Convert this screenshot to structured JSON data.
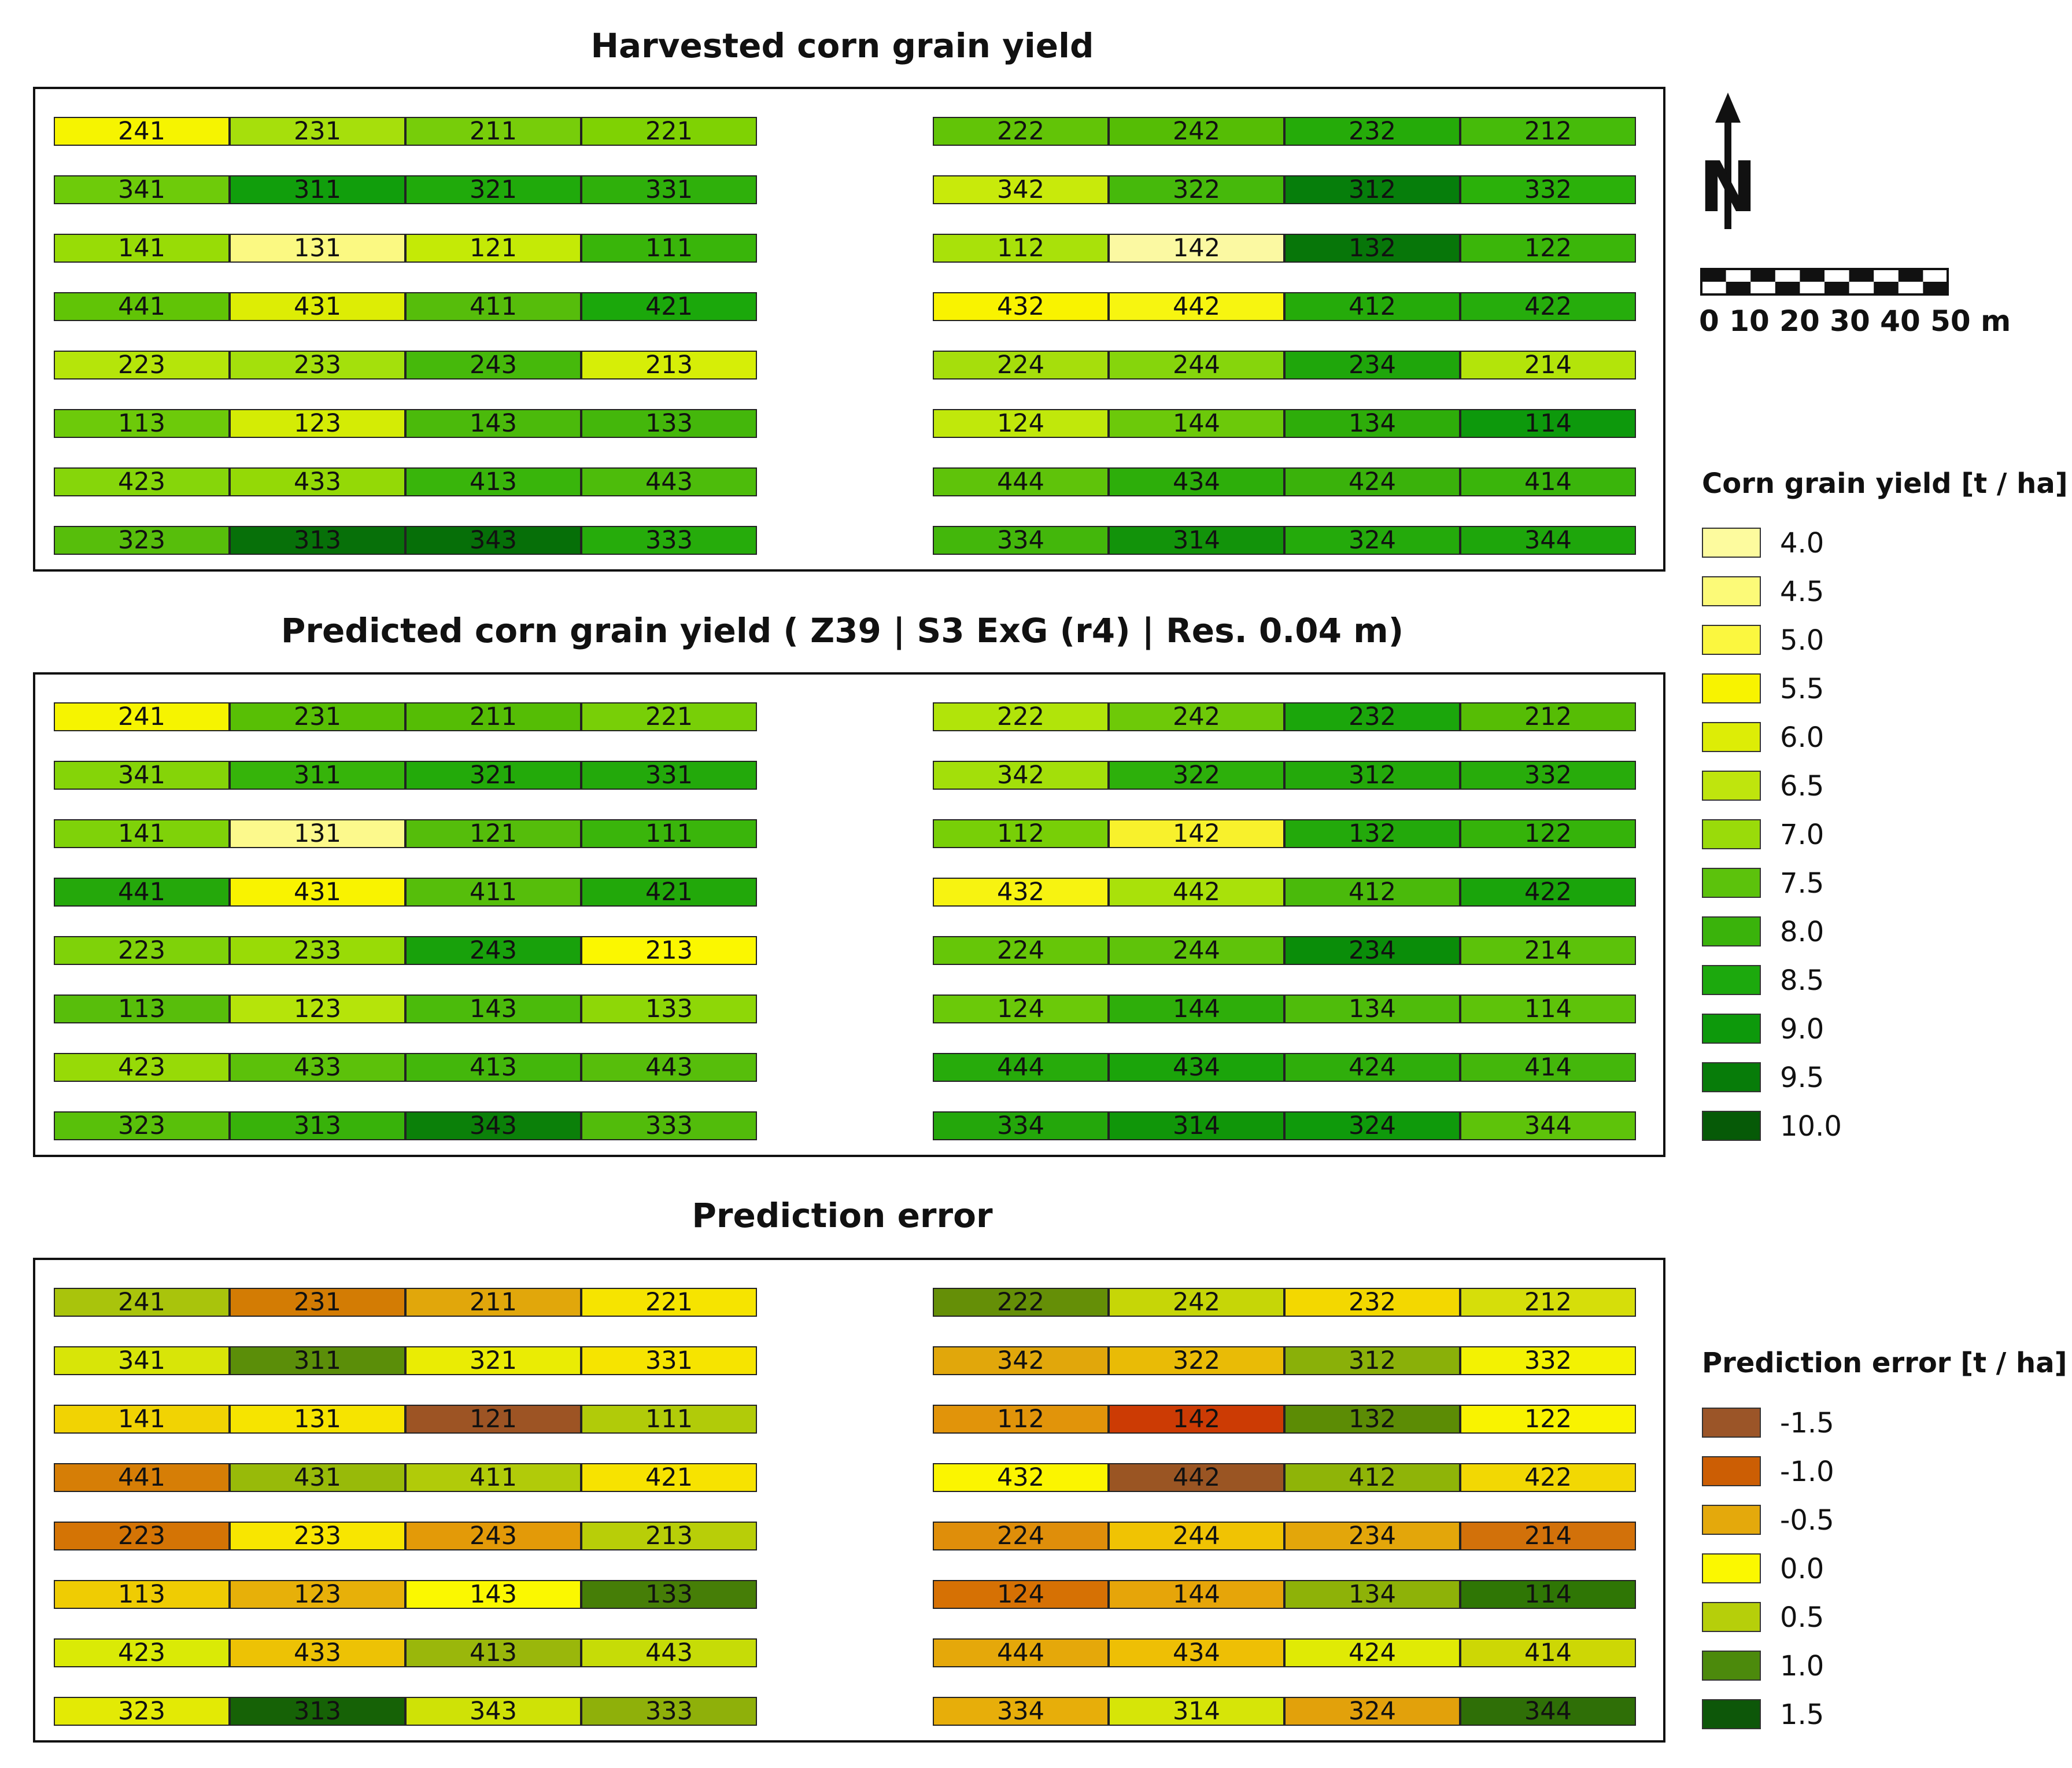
{
  "titles": {
    "harvested": "Harvested corn grain yield",
    "predicted": "Predicted corn grain yield ( Z39 | S3 ExG (r4) | Res. 0.04 m)",
    "error": "Prediction error"
  },
  "maps": {
    "harvested": {
      "rows": [
        [
          {
            "id": "241",
            "c": "#f6f400"
          },
          {
            "id": "231",
            "c": "#a6df0c"
          },
          {
            "id": "211",
            "c": "#77cd0a"
          },
          {
            "id": "221",
            "c": "#7fd203"
          },
          {
            "id": "222",
            "c": "#62c407"
          },
          {
            "id": "242",
            "c": "#55bd05"
          },
          {
            "id": "232",
            "c": "#25ab09"
          },
          {
            "id": "212",
            "c": "#46bb0a"
          }
        ],
        [
          {
            "id": "341",
            "c": "#6ecb0a"
          },
          {
            "id": "311",
            "c": "#119e0c"
          },
          {
            "id": "321",
            "c": "#20aa0b"
          },
          {
            "id": "331",
            "c": "#2fb00b"
          },
          {
            "id": "342",
            "c": "#c8ea0b"
          },
          {
            "id": "322",
            "c": "#46b90b"
          },
          {
            "id": "312",
            "c": "#067e0b"
          },
          {
            "id": "332",
            "c": "#2bb10a"
          }
        ],
        [
          {
            "id": "141",
            "c": "#98dc06"
          },
          {
            "id": "131",
            "c": "#fbf982"
          },
          {
            "id": "121",
            "c": "#c4ea06"
          },
          {
            "id": "111",
            "c": "#39b50a"
          },
          {
            "id": "112",
            "c": "#a9e10a"
          },
          {
            "id": "142",
            "c": "#fbf9a2"
          },
          {
            "id": "132",
            "c": "#077609"
          },
          {
            "id": "122",
            "c": "#3bb60a"
          }
        ],
        [
          {
            "id": "441",
            "c": "#61c406"
          },
          {
            "id": "431",
            "c": "#dded05"
          },
          {
            "id": "411",
            "c": "#56bd0b"
          },
          {
            "id": "421",
            "c": "#1ba80b"
          },
          {
            "id": "432",
            "c": "#f9f300"
          },
          {
            "id": "442",
            "c": "#f7f510"
          },
          {
            "id": "412",
            "c": "#25ab0a"
          },
          {
            "id": "422",
            "c": "#26ad0c"
          }
        ],
        [
          {
            "id": "223",
            "c": "#b5e50a"
          },
          {
            "id": "233",
            "c": "#a4e00c"
          },
          {
            "id": "243",
            "c": "#46b90b"
          },
          {
            "id": "213",
            "c": "#d6ee07"
          },
          {
            "id": "224",
            "c": "#a6de0c"
          },
          {
            "id": "244",
            "c": "#86d50c"
          },
          {
            "id": "234",
            "c": "#1fa60b"
          },
          {
            "id": "214",
            "c": "#b3e40a"
          }
        ],
        [
          {
            "id": "113",
            "c": "#6dca0a"
          },
          {
            "id": "123",
            "c": "#d4ec05"
          },
          {
            "id": "143",
            "c": "#4bba0b"
          },
          {
            "id": "133",
            "c": "#44b70b"
          },
          {
            "id": "124",
            "c": "#c0e80b"
          },
          {
            "id": "144",
            "c": "#6cc90a"
          },
          {
            "id": "134",
            "c": "#2ead0a"
          },
          {
            "id": "114",
            "c": "#0d990c"
          }
        ],
        [
          {
            "id": "423",
            "c": "#86d60a"
          },
          {
            "id": "433",
            "c": "#94d906"
          },
          {
            "id": "413",
            "c": "#39b50b"
          },
          {
            "id": "443",
            "c": "#4dbc0b"
          },
          {
            "id": "444",
            "c": "#5fc30a"
          },
          {
            "id": "434",
            "c": "#2dae0a"
          },
          {
            "id": "424",
            "c": "#3ab20b"
          },
          {
            "id": "414",
            "c": "#3ab50b"
          }
        ],
        [
          {
            "id": "323",
            "c": "#57be0b"
          },
          {
            "id": "313",
            "c": "#077009"
          },
          {
            "id": "343",
            "c": "#066f08"
          },
          {
            "id": "333",
            "c": "#26ac0b"
          },
          {
            "id": "334",
            "c": "#43b70b"
          },
          {
            "id": "314",
            "c": "#12930a"
          },
          {
            "id": "324",
            "c": "#24aa0b"
          },
          {
            "id": "344",
            "c": "#1ea60b"
          }
        ]
      ]
    },
    "predicted": {
      "rows": [
        [
          {
            "id": "241",
            "c": "#f6f400"
          },
          {
            "id": "231",
            "c": "#58bf05"
          },
          {
            "id": "211",
            "c": "#55bd05"
          },
          {
            "id": "221",
            "c": "#78cf07"
          },
          {
            "id": "222",
            "c": "#b1e40a"
          },
          {
            "id": "242",
            "c": "#6ec908"
          },
          {
            "id": "232",
            "c": "#1ba60b"
          },
          {
            "id": "212",
            "c": "#56bd05"
          }
        ],
        [
          {
            "id": "341",
            "c": "#85d408"
          },
          {
            "id": "311",
            "c": "#36b40a"
          },
          {
            "id": "321",
            "c": "#23aa0a"
          },
          {
            "id": "331",
            "c": "#23a90b"
          },
          {
            "id": "342",
            "c": "#a3df0a"
          },
          {
            "id": "322",
            "c": "#2db00b"
          },
          {
            "id": "312",
            "c": "#24a90b"
          },
          {
            "id": "332",
            "c": "#28ac0b"
          }
        ],
        [
          {
            "id": "141",
            "c": "#7fd209"
          },
          {
            "id": "131",
            "c": "#fcf98c"
          },
          {
            "id": "121",
            "c": "#55bd0b"
          },
          {
            "id": "111",
            "c": "#3ab50b"
          },
          {
            "id": "112",
            "c": "#78cf07"
          },
          {
            "id": "142",
            "c": "#f8f12c"
          },
          {
            "id": "132",
            "c": "#23a90b"
          },
          {
            "id": "122",
            "c": "#35b30a"
          }
        ],
        [
          {
            "id": "441",
            "c": "#25a80b"
          },
          {
            "id": "431",
            "c": "#f9f300"
          },
          {
            "id": "411",
            "c": "#56be0b"
          },
          {
            "id": "421",
            "c": "#22a80a"
          },
          {
            "id": "432",
            "c": "#f7f311"
          },
          {
            "id": "442",
            "c": "#a9e10a"
          },
          {
            "id": "412",
            "c": "#4aba0b"
          },
          {
            "id": "422",
            "c": "#1aa40b"
          }
        ],
        [
          {
            "id": "223",
            "c": "#7fd209"
          },
          {
            "id": "233",
            "c": "#99db06"
          },
          {
            "id": "243",
            "c": "#18a10b"
          },
          {
            "id": "213",
            "c": "#fbf700"
          },
          {
            "id": "224",
            "c": "#66c608"
          },
          {
            "id": "244",
            "c": "#5fc30a"
          },
          {
            "id": "234",
            "c": "#0a8d09"
          },
          {
            "id": "214",
            "c": "#5cc20a"
          }
        ],
        [
          {
            "id": "113",
            "c": "#58be0b"
          },
          {
            "id": "123",
            "c": "#b5e40a"
          },
          {
            "id": "143",
            "c": "#4bbb0b"
          },
          {
            "id": "133",
            "c": "#8ed707"
          },
          {
            "id": "124",
            "c": "#6bc909"
          },
          {
            "id": "144",
            "c": "#2eae0a"
          },
          {
            "id": "134",
            "c": "#4fbc0b"
          },
          {
            "id": "114",
            "c": "#5ec30a"
          }
        ],
        [
          {
            "id": "423",
            "c": "#97da07"
          },
          {
            "id": "433",
            "c": "#5cc10a"
          },
          {
            "id": "413",
            "c": "#43b70b"
          },
          {
            "id": "443",
            "c": "#57be0b"
          },
          {
            "id": "444",
            "c": "#27ab0b"
          },
          {
            "id": "434",
            "c": "#1ba40a"
          },
          {
            "id": "424",
            "c": "#2fae0b"
          },
          {
            "id": "414",
            "c": "#44b70b"
          }
        ],
        [
          {
            "id": "323",
            "c": "#59c00a"
          },
          {
            "id": "313",
            "c": "#38b20a"
          },
          {
            "id": "343",
            "c": "#0b8009"
          },
          {
            "id": "333",
            "c": "#52bc0b"
          },
          {
            "id": "334",
            "c": "#24a70b"
          },
          {
            "id": "314",
            "c": "#109609"
          },
          {
            "id": "324",
            "c": "#0f9a0b"
          },
          {
            "id": "344",
            "c": "#5ec30a"
          }
        ]
      ]
    },
    "error": {
      "rows": [
        [
          {
            "id": "241",
            "c": "#a9c40c"
          },
          {
            "id": "231",
            "c": "#d37c04"
          },
          {
            "id": "211",
            "c": "#e1a70b"
          },
          {
            "id": "221",
            "c": "#f6e400"
          },
          {
            "id": "222",
            "c": "#658f07"
          },
          {
            "id": "242",
            "c": "#c6d607"
          },
          {
            "id": "232",
            "c": "#f3d800"
          },
          {
            "id": "212",
            "c": "#d6de0a"
          }
        ],
        [
          {
            "id": "341",
            "c": "#d8e508"
          },
          {
            "id": "311",
            "c": "#5b8e09"
          },
          {
            "id": "321",
            "c": "#eaec04"
          },
          {
            "id": "331",
            "c": "#f6e400"
          },
          {
            "id": "342",
            "c": "#e1a70b"
          },
          {
            "id": "322",
            "c": "#e9bb06"
          },
          {
            "id": "312",
            "c": "#8ab009"
          },
          {
            "id": "332",
            "c": "#f3f202"
          }
        ],
        [
          {
            "id": "141",
            "c": "#f1d303"
          },
          {
            "id": "131",
            "c": "#f6e400"
          },
          {
            "id": "121",
            "c": "#9d5424"
          },
          {
            "id": "111",
            "c": "#b1cb09"
          },
          {
            "id": "112",
            "c": "#e1940a"
          },
          {
            "id": "142",
            "c": "#cc3b04"
          },
          {
            "id": "132",
            "c": "#5c8c05"
          },
          {
            "id": "122",
            "c": "#f9f300"
          }
        ],
        [
          {
            "id": "441",
            "c": "#d67e06"
          },
          {
            "id": "431",
            "c": "#98ba09"
          },
          {
            "id": "411",
            "c": "#b1cb09"
          },
          {
            "id": "421",
            "c": "#f7e300"
          },
          {
            "id": "432",
            "c": "#fbf500"
          },
          {
            "id": "442",
            "c": "#9a5523"
          },
          {
            "id": "412",
            "c": "#8fb408"
          },
          {
            "id": "422",
            "c": "#f2d803"
          }
        ],
        [
          {
            "id": "223",
            "c": "#d47405"
          },
          {
            "id": "233",
            "c": "#f8e600"
          },
          {
            "id": "243",
            "c": "#e39a08"
          },
          {
            "id": "213",
            "c": "#b8ce08"
          },
          {
            "id": "224",
            "c": "#df8e0a"
          },
          {
            "id": "244",
            "c": "#f0c303"
          },
          {
            "id": "234",
            "c": "#e3a60a"
          },
          {
            "id": "214",
            "c": "#d2710a"
          }
        ],
        [
          {
            "id": "113",
            "c": "#efcc03"
          },
          {
            "id": "123",
            "c": "#e7b009"
          },
          {
            "id": "143",
            "c": "#fbf800"
          },
          {
            "id": "133",
            "c": "#467e07"
          },
          {
            "id": "124",
            "c": "#d67104"
          },
          {
            "id": "144",
            "c": "#e6a509"
          },
          {
            "id": "134",
            "c": "#8eb208"
          },
          {
            "id": "114",
            "c": "#2f7605"
          }
        ],
        [
          {
            "id": "423",
            "c": "#daea06"
          },
          {
            "id": "433",
            "c": "#edc205"
          },
          {
            "id": "413",
            "c": "#9ab70b"
          },
          {
            "id": "443",
            "c": "#c6dc07"
          },
          {
            "id": "444",
            "c": "#e5a80a"
          },
          {
            "id": "434",
            "c": "#eebf05"
          },
          {
            "id": "424",
            "c": "#e0ea05"
          },
          {
            "id": "414",
            "c": "#cdd705"
          }
        ],
        [
          {
            "id": "323",
            "c": "#e3ea05"
          },
          {
            "id": "313",
            "c": "#166206"
          },
          {
            "id": "343",
            "c": "#cfe206"
          },
          {
            "id": "333",
            "c": "#8fb00a"
          },
          {
            "id": "334",
            "c": "#e7ae0a"
          },
          {
            "id": "314",
            "c": "#d6e508"
          },
          {
            "id": "324",
            "c": "#e2a10b"
          },
          {
            "id": "344",
            "c": "#2f6f07"
          }
        ]
      ]
    }
  },
  "north_arrow": {
    "label": "N"
  },
  "scale": {
    "labels": "0 10 20 30 40 50 m"
  },
  "legends": {
    "yield": {
      "title": "Corn grain yield [t / ha]",
      "items": [
        {
          "label": "4.0",
          "color": "#fdfb9e"
        },
        {
          "label": "4.5",
          "color": "#fcfa78"
        },
        {
          "label": "5.0",
          "color": "#fbf73f"
        },
        {
          "label": "5.5",
          "color": "#f8f300"
        },
        {
          "label": "6.0",
          "color": "#dded06"
        },
        {
          "label": "6.5",
          "color": "#bfe50d"
        },
        {
          "label": "7.0",
          "color": "#9adb0a"
        },
        {
          "label": "7.5",
          "color": "#5cc20c"
        },
        {
          "label": "8.0",
          "color": "#3ab30b"
        },
        {
          "label": "8.5",
          "color": "#1ca90d"
        },
        {
          "label": "9.0",
          "color": "#0d990b"
        },
        {
          "label": "9.5",
          "color": "#077c09"
        },
        {
          "label": "10.0",
          "color": "#065a07"
        }
      ]
    },
    "error": {
      "title": "Prediction error [t / ha]",
      "items": [
        {
          "label": "-1.5",
          "color": "#9b5528"
        },
        {
          "label": "-1.0",
          "color": "#cc5e04"
        },
        {
          "label": "-0.5",
          "color": "#e4a90c"
        },
        {
          "label": "0.0",
          "color": "#fbf800"
        },
        {
          "label": "0.5",
          "color": "#b6cf0a"
        },
        {
          "label": "1.0",
          "color": "#4c8a0c"
        },
        {
          "label": "1.5",
          "color": "#0d5709"
        }
      ]
    }
  }
}
